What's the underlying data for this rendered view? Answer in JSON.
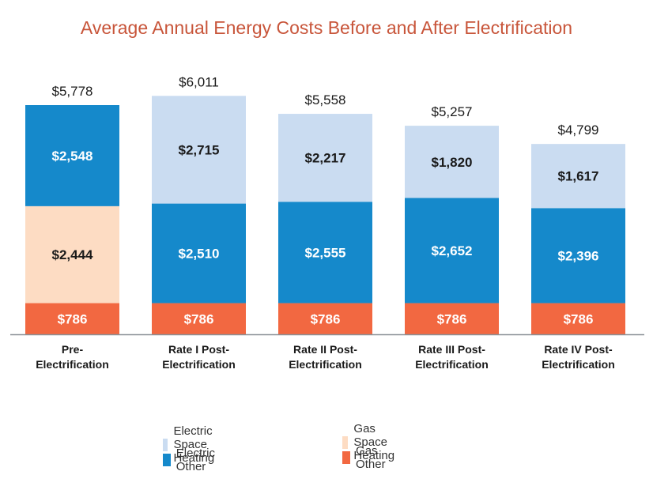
{
  "chart_data": {
    "type": "stacked-bar",
    "title": "Average Annual Energy Costs Before and After Electrification",
    "xlabel": "",
    "ylabel": "",
    "ylim": [
      0,
      6500
    ],
    "grid": false,
    "legend_position": "bottom",
    "categories": [
      "Pre-Electrification",
      "Rate I Post-Electrification",
      "Rate II Post-Electrification",
      "Rate III Post-Electrification",
      "Rate IV Post-Electrification"
    ],
    "category_lines": [
      [
        "Pre-",
        "Electrification"
      ],
      [
        "Rate I Post-",
        "Electrification"
      ],
      [
        "Rate II Post-",
        "Electrification"
      ],
      [
        "Rate III Post-",
        "Electrification"
      ],
      [
        "Rate IV Post-",
        "Electrification"
      ]
    ],
    "series": [
      {
        "name": "Gas Other",
        "color": "#f26841",
        "label_color": "#ffffff",
        "values": [
          786,
          786,
          786,
          786,
          786
        ],
        "labels": [
          "$786",
          "$786",
          "$786",
          "$786",
          "$786"
        ]
      },
      {
        "name": "Gas Space Heating",
        "color": "#fddcc3",
        "label_color": "#1a1a1a",
        "values": [
          2444,
          0,
          0,
          0,
          0
        ],
        "labels": [
          "$2,444",
          "",
          "",
          "",
          ""
        ]
      },
      {
        "name": "Electric Other",
        "color": "#1589cb",
        "label_color": "#ffffff",
        "values": [
          2548,
          2510,
          2555,
          2652,
          2396
        ],
        "labels": [
          "$2,548",
          "$2,510",
          "$2,555",
          "$2,652",
          "$2,396"
        ]
      },
      {
        "name": "Electric Space Heating",
        "color": "#cadcf1",
        "label_color": "#1a1a1a",
        "values": [
          0,
          2715,
          2217,
          1820,
          1617
        ],
        "labels": [
          "",
          "$2,715",
          "$2,217",
          "$1,820",
          "$1,617"
        ]
      }
    ],
    "totals": [
      5778,
      6011,
      5558,
      5257,
      4799
    ],
    "total_labels": [
      "$5,778",
      "$6,011",
      "$5,558",
      "$5,257",
      "$4,799"
    ]
  },
  "legend": [
    {
      "name": "Electric Space Heating",
      "color": "#cadcf1"
    },
    {
      "name": "Gas Space Heating",
      "color": "#fddcc3"
    },
    {
      "name": "Electric Other",
      "color": "#1589cb"
    },
    {
      "name": "Gas Other",
      "color": "#f26841"
    }
  ]
}
